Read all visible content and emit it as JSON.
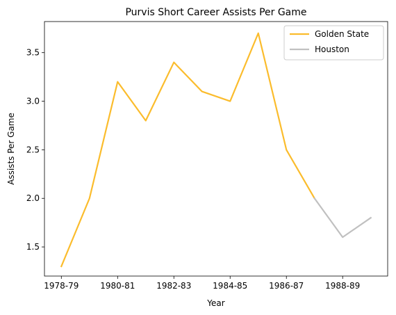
{
  "chart_data": {
    "type": "line",
    "title": "Purvis Short Career Assists Per Game",
    "xlabel": "Year",
    "ylabel": "Assists Per Game",
    "x": [
      "1978-79",
      "1979-80",
      "1980-81",
      "1981-82",
      "1982-83",
      "1983-84",
      "1984-85",
      "1985-86",
      "1986-87",
      "1987-88",
      "1988-89",
      "1989-90"
    ],
    "x_tick_labels": [
      "1978-79",
      "1980-81",
      "1982-83",
      "1984-85",
      "1986-87",
      "1988-89"
    ],
    "y_ticks": [
      "1.5",
      "2.0",
      "2.5",
      "3.0",
      "3.5"
    ],
    "ylim": [
      1.2,
      3.82
    ],
    "series": [
      {
        "name": "Golden State",
        "color": "#fbbc2c",
        "x": [
          "1978-79",
          "1979-80",
          "1980-81",
          "1981-82",
          "1982-83",
          "1983-84",
          "1984-85",
          "1985-86",
          "1986-87",
          "1987-88"
        ],
        "values": [
          1.3,
          2.0,
          3.2,
          2.8,
          3.4,
          3.1,
          3.0,
          3.7,
          2.5,
          2.0
        ]
      },
      {
        "name": "Houston",
        "color": "#c0c0c0",
        "x": [
          "1987-88",
          "1988-89",
          "1989-90"
        ],
        "values": [
          2.0,
          1.6,
          1.8
        ]
      }
    ],
    "legend_position": "top-right",
    "grid": false
  }
}
